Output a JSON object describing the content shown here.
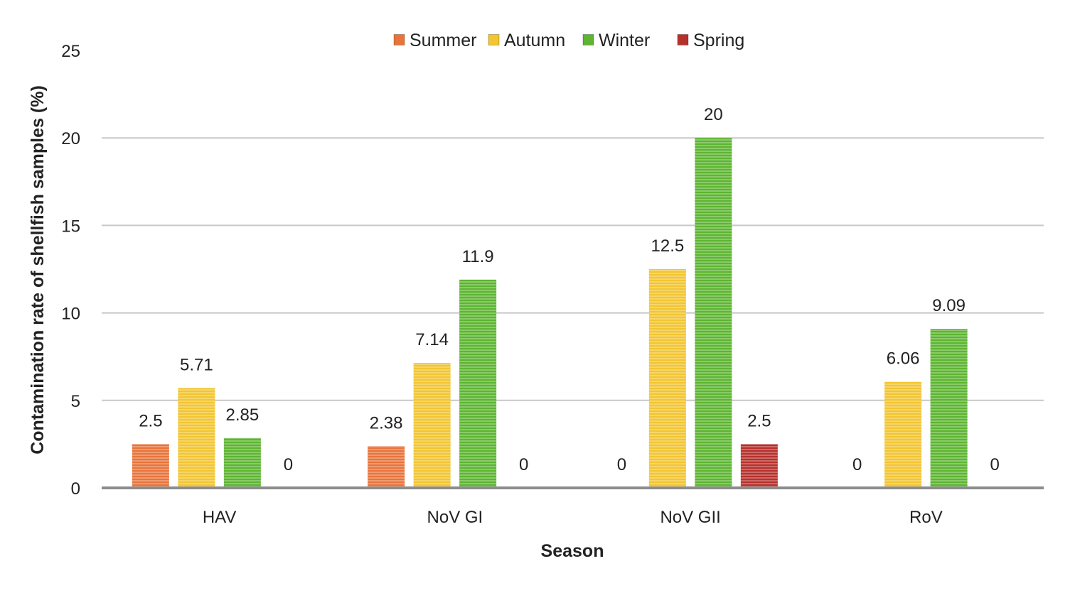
{
  "chart_data": {
    "type": "bar",
    "title": "",
    "xlabel": "Season",
    "ylabel": "Contamination rate of shellfish samples (%)",
    "ylim": [
      0,
      25
    ],
    "yticks": [
      0,
      5,
      10,
      15,
      20,
      25
    ],
    "grid": true,
    "legend_position": "top-center",
    "categories": [
      "HAV",
      "NoV GI",
      "NoV GII",
      "RoV"
    ],
    "series": [
      {
        "name": "Summer",
        "color": "#E8743B",
        "values": [
          2.5,
          2.38,
          0,
          0
        ],
        "labels": [
          "2.5",
          "2.38",
          "0",
          "0"
        ]
      },
      {
        "name": "Autumn",
        "color": "#F2C531",
        "values": [
          5.71,
          7.14,
          12.5,
          6.06
        ],
        "labels": [
          "5.71",
          "7.14",
          "12.5",
          "6.06"
        ]
      },
      {
        "name": "Winter",
        "color": "#5DB531",
        "values": [
          2.85,
          11.9,
          20,
          9.09
        ],
        "labels": [
          "2.85",
          "11.9",
          "20",
          "9.09"
        ]
      },
      {
        "name": "Spring",
        "color": "#B7312C",
        "values": [
          0,
          0,
          2.5,
          0
        ],
        "labels": [
          "0",
          "0",
          "2.5",
          "0"
        ]
      }
    ]
  }
}
